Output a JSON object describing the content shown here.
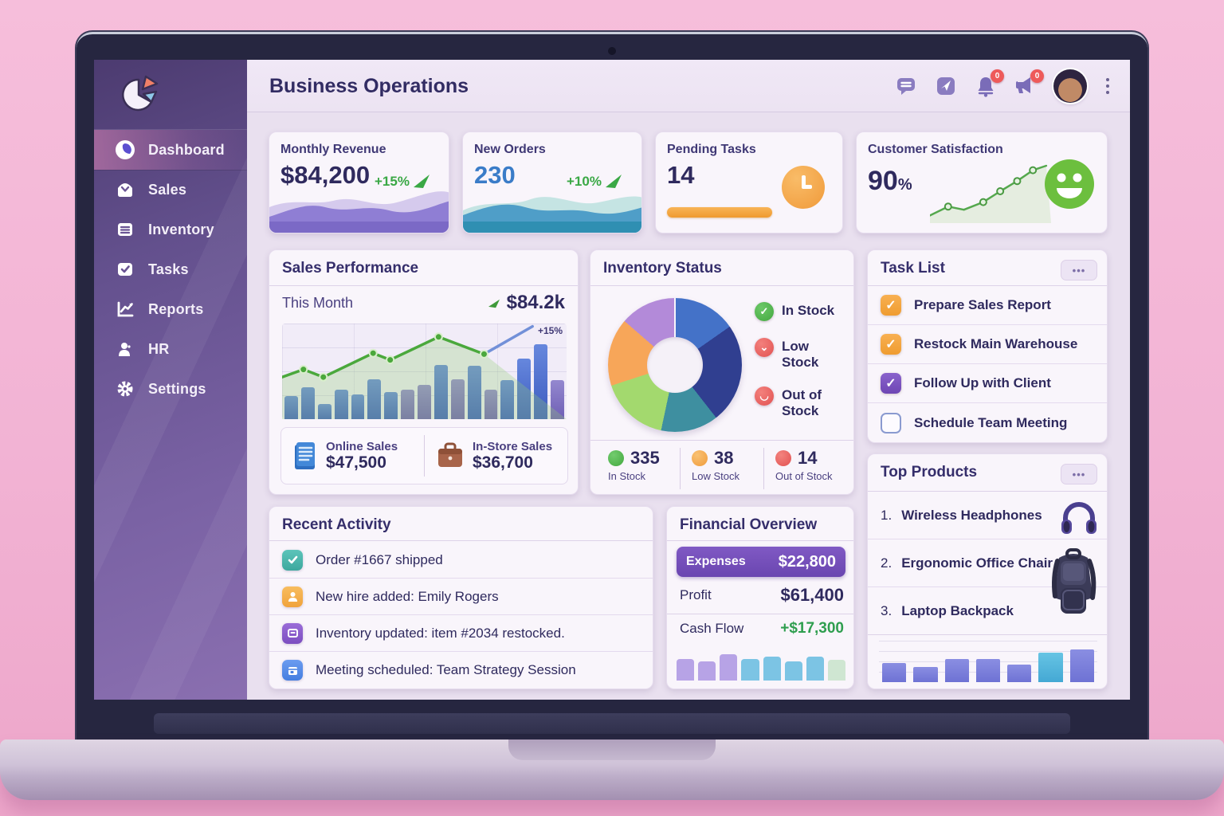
{
  "colors": {
    "accent_purple": "#7352b8",
    "sidebar_purple": "#6a5494",
    "positive_green": "#3aa845",
    "alert_red": "#ee5a5a",
    "warning_orange": "#f5a742",
    "info_blue": "#3a7cc8",
    "background_pink": "#f2b3d4"
  },
  "header": {
    "title": "Business Operations",
    "bell_badge": "0",
    "announce_badge": "0"
  },
  "sidebar": {
    "items": [
      {
        "label": "Dashboard"
      },
      {
        "label": "Sales"
      },
      {
        "label": "Inventory"
      },
      {
        "label": "Tasks"
      },
      {
        "label": "Reports"
      },
      {
        "label": "HR"
      },
      {
        "label": "Settings"
      }
    ]
  },
  "stat_cards": {
    "revenue": {
      "title": "Monthly Revenue",
      "value": "$84,200",
      "delta": "+15%"
    },
    "orders": {
      "title": "New Orders",
      "value": "230",
      "delta": "+10%"
    },
    "tasks": {
      "title": "Pending Tasks",
      "value": "14"
    },
    "satisfaction": {
      "title": "Customer Satisfaction",
      "value": "90",
      "suffix": "%"
    }
  },
  "sales_performance": {
    "title": "Sales Performance",
    "period_label": "This Month",
    "period_value": "$84.2k",
    "annotation": "+15%",
    "breakdown": [
      {
        "label": "Online Sales",
        "value": "$47,500"
      },
      {
        "label": "In-Store Sales",
        "value": "$36,700"
      }
    ]
  },
  "inventory_status": {
    "title": "Inventory Status",
    "legend": [
      {
        "label": "In Stock"
      },
      {
        "label": "Low Stock"
      },
      {
        "label": "Out of Stock"
      }
    ],
    "stats": [
      {
        "value": "335",
        "label": "In Stock"
      },
      {
        "value": "38",
        "label": "Low Stock"
      },
      {
        "value": "14",
        "label": "Out of Stock"
      }
    ]
  },
  "task_list": {
    "title": "Task List",
    "menu": "•••",
    "tasks": [
      {
        "label": "Prepare Sales Report",
        "checked": true
      },
      {
        "label": "Restock Main Warehouse",
        "checked": true
      },
      {
        "label": "Follow Up with Client",
        "checked": true
      },
      {
        "label": "Schedule Team Meeting",
        "checked": false
      }
    ]
  },
  "recent_activity": {
    "title": "Recent Activity",
    "items": [
      {
        "text": "Order #1667 shipped"
      },
      {
        "text": "New hire added: Emily Rogers"
      },
      {
        "text": "Inventory updated: item #2034 restocked."
      },
      {
        "text": "Meeting scheduled: Team Strategy Session"
      }
    ]
  },
  "financial_overview": {
    "title": "Financial Overview",
    "rows": [
      {
        "label": "Expenses",
        "value": "$22,800"
      },
      {
        "label": "Profit",
        "value": "$61,400"
      },
      {
        "label": "Cash Flow",
        "value": "+$17,300"
      }
    ]
  },
  "top_products": {
    "title": "Top Products",
    "menu": "•••",
    "items": [
      {
        "rank": "1.",
        "name": "Wireless Headphones"
      },
      {
        "rank": "2.",
        "name": "Ergonomic Office Chair"
      },
      {
        "rank": "3.",
        "name": "Laptop Backpack"
      }
    ]
  },
  "chart_data": [
    {
      "id": "sales-bars",
      "type": "bar",
      "title": "Sales Performance — This Month",
      "values": [
        24,
        33,
        16,
        31,
        26,
        42,
        28,
        31,
        36,
        57,
        42,
        56,
        31,
        41,
        63,
        78,
        41
      ],
      "colors": [
        "b",
        "b",
        "b",
        "b",
        "b",
        "b",
        "b",
        "p",
        "p",
        "b",
        "p",
        "b",
        "p",
        "b",
        "b",
        "b",
        "p"
      ],
      "palette": {
        "b": "linear-gradient(180deg,#6687dd,#3d5cc0)",
        "p": "linear-gradient(180deg,#9488cf,#6f5fb5)"
      },
      "unit": "percent-of-plot-height"
    },
    {
      "id": "sales-line",
      "type": "line",
      "points": [
        [
          0,
          44
        ],
        [
          7.5,
          52
        ],
        [
          14.5,
          44
        ],
        [
          32,
          69
        ],
        [
          38,
          62
        ],
        [
          55,
          86
        ],
        [
          71,
          68
        ]
      ],
      "extension": [
        [
          71,
          68
        ],
        [
          88,
          97
        ]
      ],
      "markers": [
        1,
        2,
        3,
        4,
        5,
        6
      ],
      "annotation": "+15%",
      "color": "#4aa83c",
      "extension_color": "#7290d8",
      "area_color": "rgba(150,205,120,0.30)",
      "marker_fill": "#4aa83c",
      "marker_stroke": "#d8eecb",
      "width": 3.5,
      "marker_r": 4.5
    },
    {
      "id": "satisfaction-line",
      "type": "line",
      "points": [
        [
          0,
          12
        ],
        [
          15,
          26
        ],
        [
          28,
          21
        ],
        [
          44,
          33
        ],
        [
          58,
          50
        ],
        [
          72,
          66
        ],
        [
          85,
          83
        ],
        [
          96,
          90
        ]
      ],
      "markers": [
        1,
        3,
        4,
        5,
        6
      ],
      "color": "#55a84e",
      "area_color": "rgba(150,205,120,0.20)",
      "marker_fill": "#e6f2e2",
      "marker_stroke": "#4a9a42",
      "width": 2.5,
      "marker_r": 4
    },
    {
      "id": "inventory-donut",
      "type": "pie",
      "segments": [
        {
          "color": "#4472c8",
          "from": 0,
          "to": 55
        },
        {
          "color": "#303f90",
          "from": 55,
          "to": 142
        },
        {
          "color": "#3e8fa0",
          "from": 142,
          "to": 192
        },
        {
          "color": "#a3d96e",
          "from": 192,
          "to": 252
        },
        {
          "color": "#f7a659",
          "from": 252,
          "to": 311
        },
        {
          "color": "#b38ad9",
          "from": 311,
          "to": 360
        }
      ]
    },
    {
      "id": "financial-bars",
      "type": "bar",
      "values": [
        62,
        55,
        76,
        62,
        69,
        55,
        69,
        58
      ],
      "colors": [
        "pu",
        "pu",
        "pu",
        "bl",
        "bl",
        "bl",
        "bl",
        "gr"
      ],
      "palette": {
        "pu": "#b7a3e6",
        "bl": "#7cc4e4",
        "gr": "#cfe6d2"
      }
    },
    {
      "id": "products-bars",
      "type": "bar",
      "values": [
        46,
        36,
        56,
        56,
        43,
        72,
        78
      ],
      "colors": [
        "v",
        "v",
        "v",
        "v",
        "v",
        "t",
        "v"
      ],
      "palette": {
        "v": "linear-gradient(180deg,#8a8ee2,#6e72d4)",
        "t": "linear-gradient(180deg,#66c4e4,#44a8d4)"
      }
    }
  ]
}
